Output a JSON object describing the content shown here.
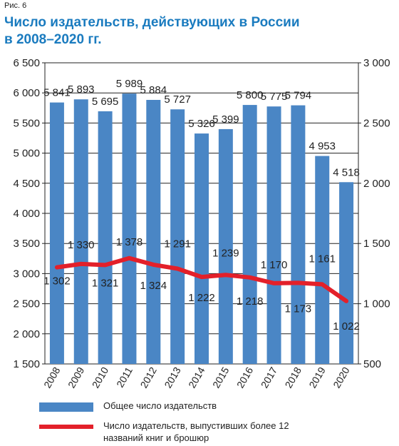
{
  "figure_label": "Рис. 6",
  "title": "Число издательств, действующих в России в 2008–2020 гг.",
  "legend": {
    "bars": "Общее число издательств",
    "line": "Число издательств, выпустивших более 12 названий книг и брошюр"
  },
  "colors": {
    "bars": "#4a86c5",
    "line": "#e3202a",
    "title": "#1a7bbf"
  },
  "chart_data": {
    "type": "bar",
    "categories": [
      "2008",
      "2009",
      "2010",
      "2011",
      "2012",
      "2013",
      "2014",
      "2015",
      "2016",
      "2017",
      "2018",
      "2019",
      "2020"
    ],
    "series": [
      {
        "name": "Общее число издательств",
        "type": "bar",
        "axis": "left",
        "values": [
          5841,
          5893,
          5695,
          5989,
          5884,
          5727,
          5326,
          5399,
          5800,
          5775,
          5794,
          4953,
          4518
        ],
        "labels": [
          "5 841",
          "5 893",
          "5 695",
          "5 989",
          "5 884",
          "5 727",
          "5 326",
          "5 399",
          "5 800",
          "5 775",
          "5 794",
          "4 953",
          "4 518"
        ]
      },
      {
        "name": "Число издательств, выпустивших более 12 названий книг и брошюр",
        "type": "line",
        "axis": "right",
        "values": [
          1302,
          1330,
          1321,
          1378,
          1324,
          1291,
          1222,
          1239,
          1218,
          1170,
          1173,
          1161,
          1022
        ],
        "labels": [
          "1 302",
          "1 330",
          "1 321",
          "1 378",
          "1 324",
          "1 291",
          "1 222",
          "1 239",
          "1 218",
          "1 170",
          "1 173",
          "1 161",
          "1 022"
        ]
      }
    ],
    "left_axis": {
      "ylim": [
        1500,
        6500
      ],
      "ticks": [
        "1 500",
        "2 000",
        "2 500",
        "3 000",
        "3 500",
        "4 000",
        "4 500",
        "5 000",
        "5 500",
        "6 000",
        "6 500"
      ]
    },
    "right_axis": {
      "ylim": [
        500,
        3000
      ],
      "ticks": [
        "500",
        "1 000",
        "1 500",
        "2 000",
        "2 500",
        "3 000"
      ]
    },
    "grid": "horizontal"
  }
}
